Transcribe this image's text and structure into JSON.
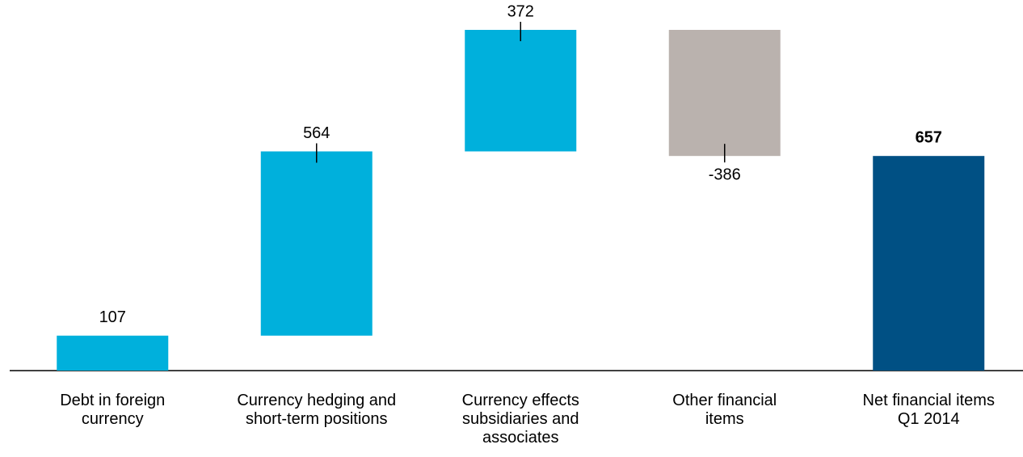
{
  "chart_data": {
    "type": "waterfall",
    "categories": [
      "Debt in foreign currency",
      "Currency hedging and short-term positions",
      "Currency effects subsidiaries and associates",
      "Other financial items",
      "Net financial items Q1 2014"
    ],
    "values": [
      107,
      564,
      372,
      -386,
      657
    ],
    "measure": [
      "relative",
      "relative",
      "relative",
      "relative",
      "total"
    ],
    "colors": [
      "#00b0dc",
      "#00b0dc",
      "#00b0dc",
      "#bab2ae",
      "#005084"
    ]
  }
}
